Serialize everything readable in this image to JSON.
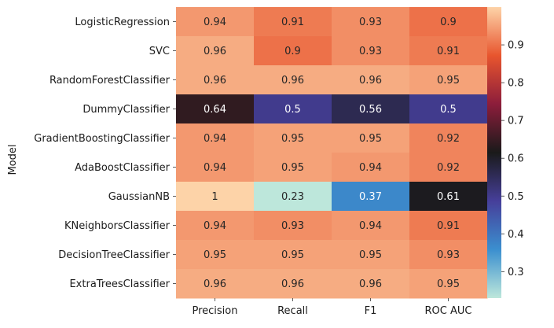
{
  "chart_data": {
    "type": "heatmap",
    "title": "",
    "xlabel": "",
    "ylabel": "Model",
    "columns": [
      "Precision",
      "Recall",
      "F1",
      "ROC AUC"
    ],
    "rows": [
      "LogisticRegression",
      "SVC",
      "RandomForestClassifier",
      "DummyClassifier",
      "GradientBoostingClassifier",
      "AdaBoostClassifier",
      "GaussianNB",
      "KNeighborsClassifier",
      "DecisionTreeClassifier",
      "ExtraTreesClassifier"
    ],
    "values": [
      [
        0.94,
        0.91,
        0.93,
        0.9
      ],
      [
        0.96,
        0.9,
        0.93,
        0.91
      ],
      [
        0.96,
        0.96,
        0.96,
        0.95
      ],
      [
        0.64,
        0.5,
        0.56,
        0.5
      ],
      [
        0.94,
        0.95,
        0.95,
        0.92
      ],
      [
        0.94,
        0.95,
        0.94,
        0.92
      ],
      [
        1,
        0.23,
        0.37,
        0.61
      ],
      [
        0.94,
        0.93,
        0.94,
        0.91
      ],
      [
        0.95,
        0.95,
        0.95,
        0.93
      ],
      [
        0.96,
        0.96,
        0.96,
        0.95
      ]
    ],
    "cell_labels": [
      [
        "0.94",
        "0.91",
        "0.93",
        "0.9"
      ],
      [
        "0.96",
        "0.9",
        "0.93",
        "0.91"
      ],
      [
        "0.96",
        "0.96",
        "0.96",
        "0.95"
      ],
      [
        "0.64",
        "0.5",
        "0.56",
        "0.5"
      ],
      [
        "0.94",
        "0.95",
        "0.95",
        "0.92"
      ],
      [
        "0.94",
        "0.95",
        "0.94",
        "0.92"
      ],
      [
        "1",
        "0.23",
        "0.37",
        "0.61"
      ],
      [
        "0.94",
        "0.93",
        "0.94",
        "0.91"
      ],
      [
        "0.95",
        "0.95",
        "0.95",
        "0.93"
      ],
      [
        "0.96",
        "0.96",
        "0.96",
        "0.95"
      ]
    ],
    "colormap": "icefire",
    "vmin": 0.23,
    "vmax": 1.0,
    "colorbar": {
      "ticks": [
        0.3,
        0.4,
        0.5,
        0.6,
        0.7,
        0.8,
        0.9
      ],
      "tick_labels": [
        "0.3",
        "0.4",
        "0.5",
        "0.6",
        "0.7",
        "0.8",
        "0.9"
      ],
      "placement": "right"
    },
    "grid": false,
    "colors": {
      "stops": [
        "#bde7db",
        "#3b8fcf",
        "#463f9a",
        "#1a1a1a",
        "#8c1d3b",
        "#e8552e",
        "#fdd3a8"
      ]
    }
  }
}
